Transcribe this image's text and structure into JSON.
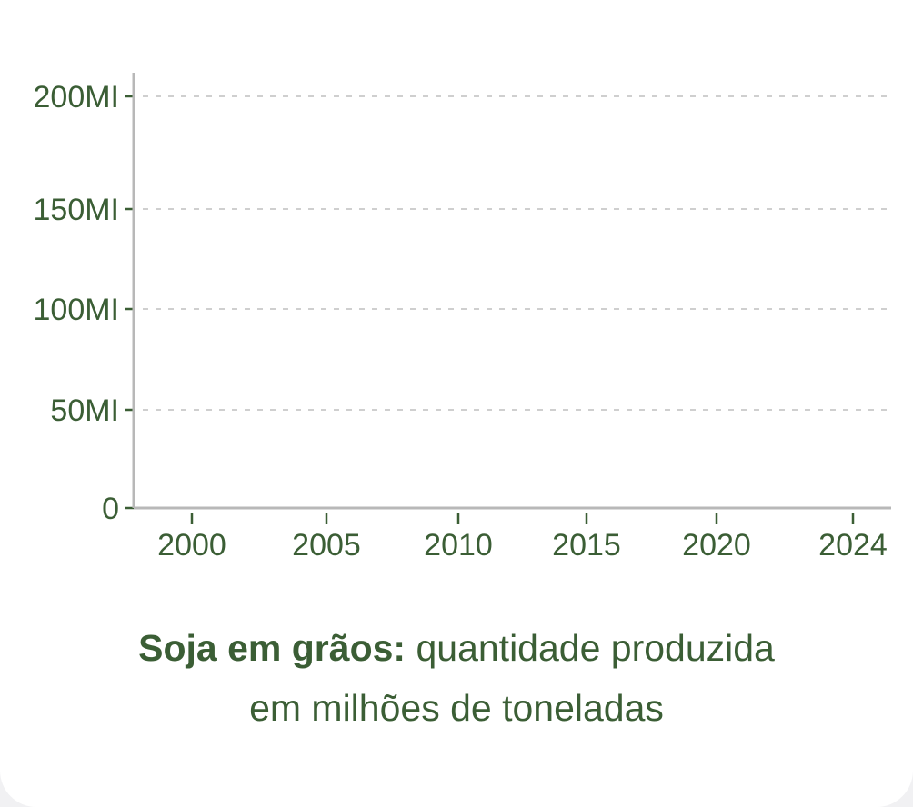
{
  "caption": {
    "bold": "Soja em grãos:",
    "line1_rest": " quantidade produzida",
    "line2": "em milhões de toneladas"
  },
  "colors": {
    "text": "#3b5e35",
    "axis": "#b8b8b8",
    "grid": "#cfcfcf"
  },
  "chart_data": {
    "type": "line",
    "title": "",
    "xlabel": "",
    "ylabel": "",
    "x_ticks": [
      "2000",
      "2005",
      "2010",
      "2015",
      "2020",
      "2024"
    ],
    "y_ticks": [
      "0",
      "50MI",
      "100MI",
      "150MI",
      "200MI"
    ],
    "xlim": [
      1999,
      2025
    ],
    "ylim": [
      0,
      200
    ],
    "grid": true,
    "series": []
  }
}
